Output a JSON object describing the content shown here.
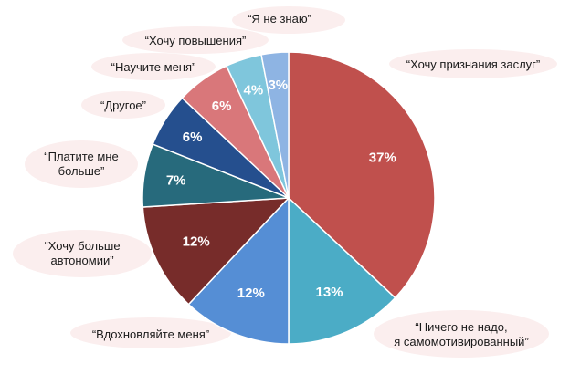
{
  "chart_data": {
    "type": "pie",
    "title": "",
    "slices": [
      {
        "label": "“Хочу признания заслуг”",
        "value": 37,
        "value_label": "37%",
        "color": "#c0504d"
      },
      {
        "label": "“Ничего не надо,\nя самомотивированный”",
        "value": 13,
        "value_label": "13%",
        "color": "#4bacc6"
      },
      {
        "label": "“Вдохновляйте меня”",
        "value": 12,
        "value_label": "12%",
        "color": "#558ed5"
      },
      {
        "label": "“Хочу больше\nавтономии”",
        "value": 12,
        "value_label": "12%",
        "color": "#772c2a"
      },
      {
        "label": "“Платите мне\nбольше”",
        "value": 7,
        "value_label": "7%",
        "color": "#276a7c"
      },
      {
        "label": "“Другое”",
        "value": 6,
        "value_label": "6%",
        "color": "#254f8e"
      },
      {
        "label": "“Научите меня”",
        "value": 6,
        "value_label": "6%",
        "color": "#d9777a"
      },
      {
        "label": "“Хочу повышения”",
        "value": 4,
        "value_label": "4%",
        "color": "#7fc6dc"
      },
      {
        "label": "“Я не знаю”",
        "value": 3,
        "value_label": "3%",
        "color": "#8eb4e3"
      }
    ],
    "legend": "none"
  }
}
